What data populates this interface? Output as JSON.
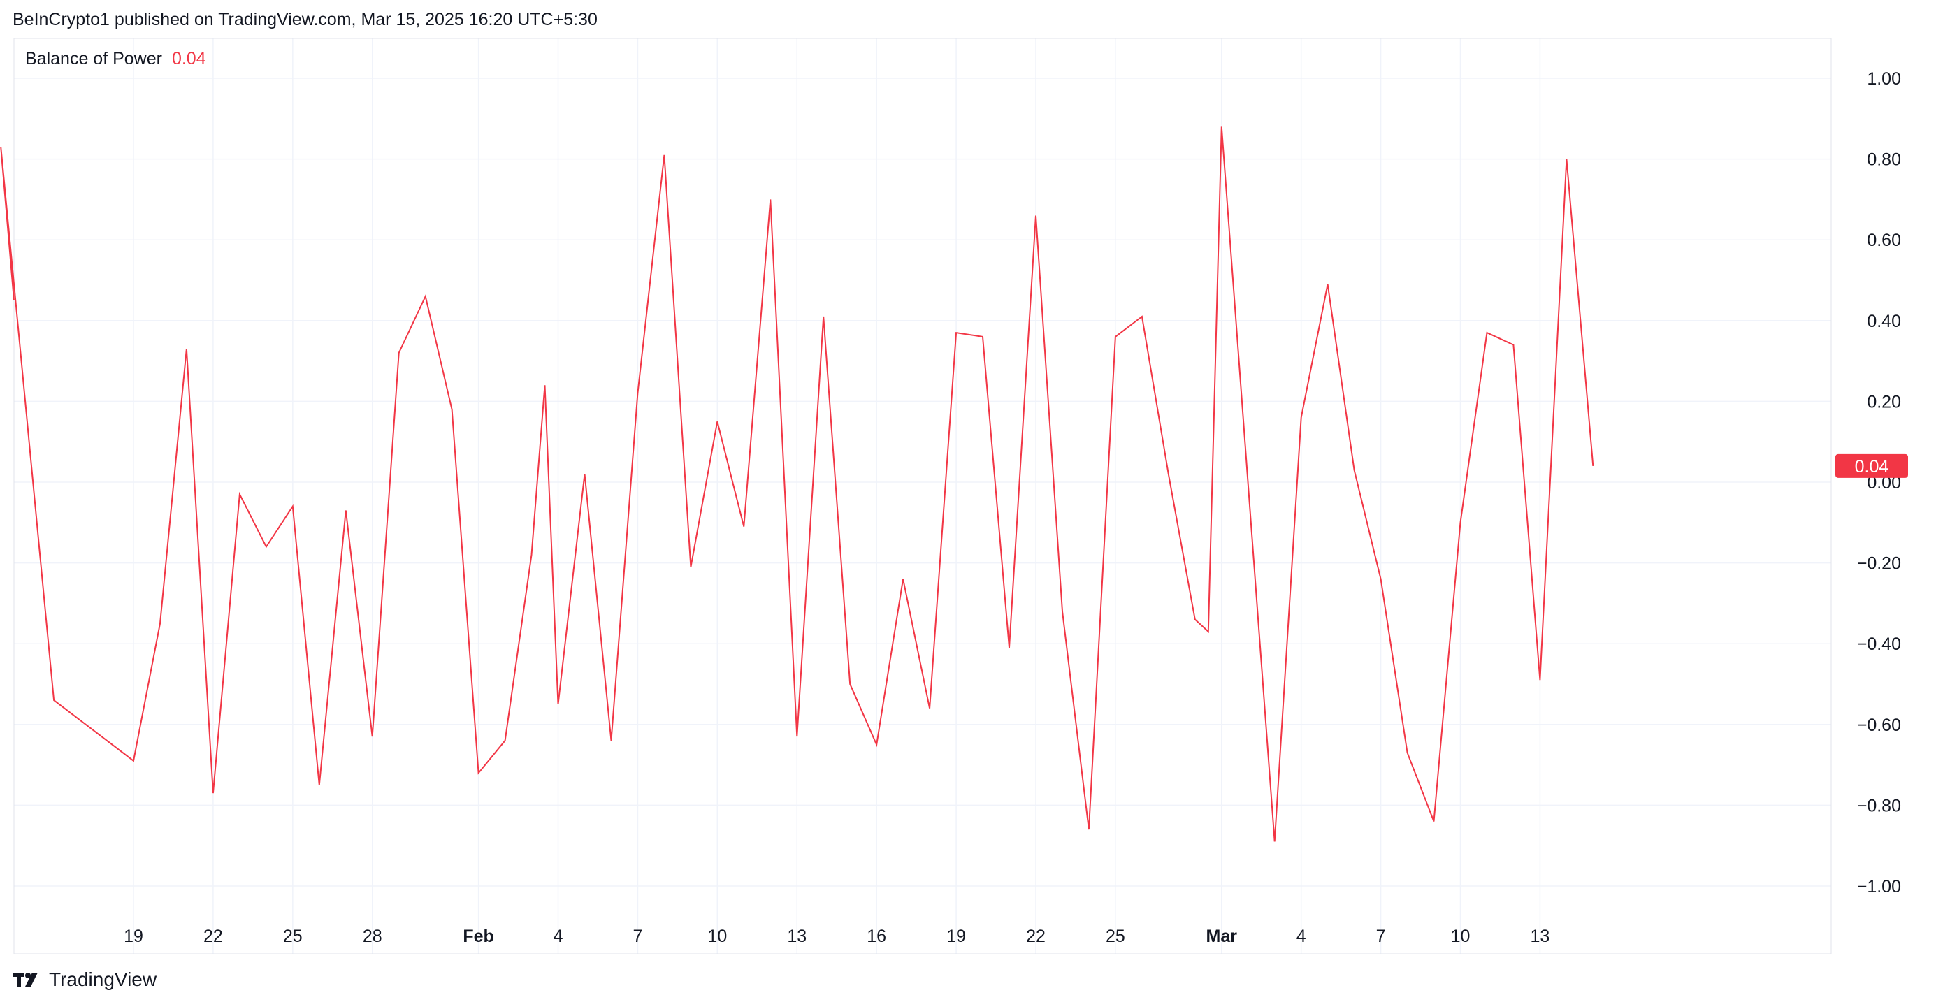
{
  "header": {
    "published": "BeInCrypto1 published on TradingView.com, Mar 15, 2025 16:20 UTC+5:30"
  },
  "legend": {
    "name": "Balance of Power",
    "value": "0.04"
  },
  "footer": {
    "brand": "TradingView"
  },
  "colors": {
    "line": "#f23645",
    "grid": "#f0f3fa",
    "text": "#131722"
  },
  "chart_data": {
    "type": "line",
    "title": "",
    "xlabel": "",
    "ylabel": "",
    "ylim": [
      -1.1,
      1.1
    ],
    "grid": true,
    "y_ticks": [
      "1.00",
      "0.80",
      "0.60",
      "0.40",
      "0.20",
      "0.00",
      "−0.20",
      "−0.40",
      "−0.60",
      "−0.80",
      "−1.00"
    ],
    "y_tick_values": [
      1.0,
      0.8,
      0.6,
      0.4,
      0.2,
      0.0,
      -0.2,
      -0.4,
      -0.6,
      -0.8,
      -1.0
    ],
    "x_ticks": [
      {
        "label": "19",
        "date": "2025-01-19",
        "bold": false
      },
      {
        "label": "22",
        "date": "2025-01-22",
        "bold": false
      },
      {
        "label": "25",
        "date": "2025-01-25",
        "bold": false
      },
      {
        "label": "28",
        "date": "2025-01-28",
        "bold": false
      },
      {
        "label": "Feb",
        "date": "2025-02-01",
        "bold": true
      },
      {
        "label": "4",
        "date": "2025-02-04",
        "bold": false
      },
      {
        "label": "7",
        "date": "2025-02-07",
        "bold": false
      },
      {
        "label": "10",
        "date": "2025-02-10",
        "bold": false
      },
      {
        "label": "13",
        "date": "2025-02-13",
        "bold": false
      },
      {
        "label": "16",
        "date": "2025-02-16",
        "bold": false
      },
      {
        "label": "19",
        "date": "2025-02-19",
        "bold": false
      },
      {
        "label": "22",
        "date": "2025-02-22",
        "bold": false
      },
      {
        "label": "25",
        "date": "2025-02-25",
        "bold": false
      },
      {
        "label": "Mar",
        "date": "2025-03-01",
        "bold": true
      },
      {
        "label": "4",
        "date": "2025-03-04",
        "bold": false
      },
      {
        "label": "7",
        "date": "2025-03-07",
        "bold": false
      },
      {
        "label": "10",
        "date": "2025-03-10",
        "bold": false
      },
      {
        "label": "13",
        "date": "2025-03-13",
        "bold": false
      }
    ],
    "last_value_label": "0.04",
    "series": [
      {
        "values": [
          {
            "x": "2025-01-14",
            "y": 0.83
          },
          {
            "x": "2025-01-16",
            "y": -0.54
          },
          {
            "x": "2025-01-19",
            "y": -0.69
          },
          {
            "x": "2025-01-20",
            "y": -0.35
          },
          {
            "x": "2025-01-20",
            "y": -0.01
          },
          {
            "x": "2025-01-21",
            "y": 0.33
          },
          {
            "x": "2025-01-22",
            "y": -0.77
          },
          {
            "x": "2025-01-23",
            "y": -0.03
          },
          {
            "x": "2025-01-24",
            "y": -0.16
          },
          {
            "x": "2025-01-25",
            "y": -0.06
          },
          {
            "x": "2025-01-26",
            "y": -0.75
          },
          {
            "x": "2025-01-27",
            "y": -0.07
          },
          {
            "x": "2025-01-28",
            "y": -0.63
          },
          {
            "x": "2025-01-29",
            "y": 0.32
          },
          {
            "x": "2025-01-30",
            "y": 0.46
          },
          {
            "x": "2025-01-31",
            "y": 0.18
          },
          {
            "x": "2025-02-01",
            "y": -0.72
          },
          {
            "x": "2025-02-02",
            "y": -0.64
          },
          {
            "x": "2025-02-03",
            "y": -0.18
          },
          {
            "x": "2025-02-03",
            "y": 0.24
          },
          {
            "x": "2025-02-04",
            "y": -0.55
          },
          {
            "x": "2025-02-05",
            "y": 0.02
          },
          {
            "x": "2025-02-06",
            "y": -0.64
          },
          {
            "x": "2025-02-07",
            "y": 0.22
          },
          {
            "x": "2025-02-08",
            "y": 0.81
          },
          {
            "x": "2025-02-09",
            "y": -0.21
          },
          {
            "x": "2025-02-10",
            "y": 0.15
          },
          {
            "x": "2025-02-11",
            "y": -0.11
          },
          {
            "x": "2025-02-12",
            "y": 0.7
          },
          {
            "x": "2025-02-13",
            "y": -0.63
          },
          {
            "x": "2025-02-14",
            "y": 0.41
          },
          {
            "x": "2025-02-15",
            "y": -0.5
          },
          {
            "x": "2025-02-16",
            "y": -0.65
          },
          {
            "x": "2025-02-17",
            "y": -0.24
          },
          {
            "x": "2025-02-18",
            "y": -0.56
          },
          {
            "x": "2025-02-19",
            "y": 0.37
          },
          {
            "x": "2025-02-20",
            "y": 0.36
          },
          {
            "x": "2025-02-21",
            "y": -0.41
          },
          {
            "x": "2025-02-22",
            "y": 0.66
          },
          {
            "x": "2025-02-23",
            "y": -0.32
          },
          {
            "x": "2025-02-24",
            "y": -0.86
          },
          {
            "x": "2025-02-25",
            "y": 0.36
          },
          {
            "x": "2025-02-26",
            "y": 0.41
          },
          {
            "x": "2025-02-27",
            "y": 0.02
          },
          {
            "x": "2025-02-28",
            "y": -0.34
          },
          {
            "x": "2025-02-28",
            "y": -0.37
          },
          {
            "x": "2025-03-01",
            "y": 0.88
          },
          {
            "x": "2025-03-03",
            "y": -0.89
          },
          {
            "x": "2025-03-04",
            "y": 0.16
          },
          {
            "x": "2025-03-05",
            "y": 0.49
          },
          {
            "x": "2025-03-06",
            "y": 0.03
          },
          {
            "x": "2025-03-07",
            "y": -0.24
          },
          {
            "x": "2025-03-08",
            "y": -0.67
          },
          {
            "x": "2025-03-09",
            "y": -0.84
          },
          {
            "x": "2025-03-10",
            "y": -0.1
          },
          {
            "x": "2025-03-11",
            "y": 0.37
          },
          {
            "x": "2025-03-12",
            "y": 0.34
          },
          {
            "x": "2025-03-13",
            "y": -0.49
          },
          {
            "x": "2025-03-14",
            "y": 0.8
          },
          {
            "x": "2025-03-15",
            "y": 0.04
          }
        ]
      }
    ]
  }
}
